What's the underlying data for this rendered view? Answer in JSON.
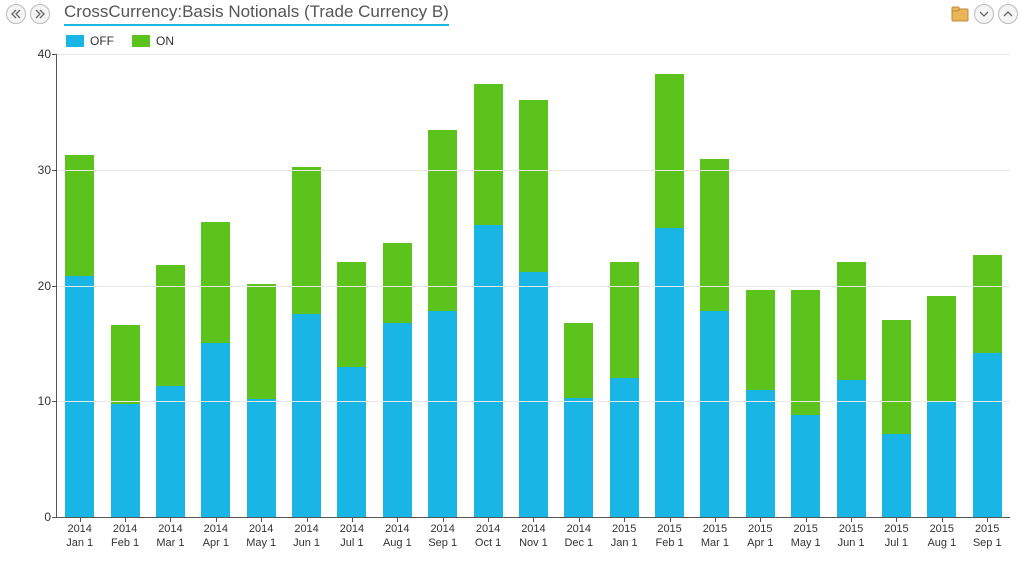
{
  "header": {
    "title": "CrossCurrency:Basis Notionals (Trade Currency B)"
  },
  "chart": {
    "type": "stacked-bar",
    "background_color": "#ffffff",
    "grid_color": "#e8e8e8",
    "axis_color": "#555555",
    "font_family": "Arial",
    "tick_fontsize": 12,
    "bar_width": 0.64,
    "ylim": [
      0,
      40
    ],
    "ytick_step": 10,
    "legend": {
      "position": "top-left",
      "items": [
        {
          "label": "OFF",
          "color": "#19b5e5"
        },
        {
          "label": "ON",
          "color": "#5cc31d"
        }
      ]
    },
    "categories": [
      {
        "line1": "2014",
        "line2": "Jan 1"
      },
      {
        "line1": "2014",
        "line2": "Feb 1"
      },
      {
        "line1": "2014",
        "line2": "Mar 1"
      },
      {
        "line1": "2014",
        "line2": "Apr 1"
      },
      {
        "line1": "2014",
        "line2": "May 1"
      },
      {
        "line1": "2014",
        "line2": "Jun 1"
      },
      {
        "line1": "2014",
        "line2": "Jul 1"
      },
      {
        "line1": "2014",
        "line2": "Aug 1"
      },
      {
        "line1": "2014",
        "line2": "Sep 1"
      },
      {
        "line1": "2014",
        "line2": "Oct 1"
      },
      {
        "line1": "2014",
        "line2": "Nov 1"
      },
      {
        "line1": "2014",
        "line2": "Dec 1"
      },
      {
        "line1": "2015",
        "line2": "Jan 1"
      },
      {
        "line1": "2015",
        "line2": "Feb 1"
      },
      {
        "line1": "2015",
        "line2": "Mar 1"
      },
      {
        "line1": "2015",
        "line2": "Apr 1"
      },
      {
        "line1": "2015",
        "line2": "May 1"
      },
      {
        "line1": "2015",
        "line2": "Jun 1"
      },
      {
        "line1": "2015",
        "line2": "Jul 1"
      },
      {
        "line1": "2015",
        "line2": "Aug 1"
      },
      {
        "line1": "2015",
        "line2": "Sep 1"
      }
    ],
    "series": [
      {
        "name": "OFF",
        "color": "#19b5e5",
        "values": [
          20.8,
          9.8,
          11.3,
          15.0,
          10.2,
          17.5,
          13.0,
          16.8,
          17.8,
          25.2,
          21.2,
          10.3,
          12.0,
          25.0,
          17.8,
          11.0,
          8.8,
          11.8,
          7.2,
          10.0,
          14.2
        ]
      },
      {
        "name": "ON",
        "color": "#5cc31d",
        "values": [
          10.5,
          6.8,
          10.5,
          10.5,
          9.9,
          12.7,
          9.0,
          6.9,
          15.6,
          12.2,
          14.8,
          6.5,
          10.0,
          13.3,
          13.1,
          8.6,
          10.8,
          10.2,
          9.8,
          9.1,
          8.4
        ]
      }
    ]
  }
}
